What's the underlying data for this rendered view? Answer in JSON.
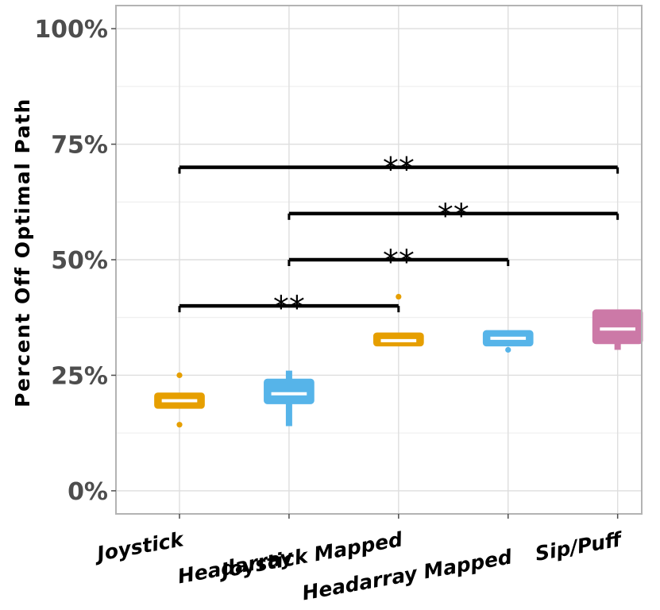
{
  "chart_data": {
    "type": "box",
    "title": "",
    "xlabel": "",
    "ylabel": "Percent Off Optimal Path",
    "ylim": [
      -5,
      105
    ],
    "yticks": [
      0,
      25,
      50,
      75,
      100
    ],
    "ytick_labels": [
      "0%",
      "25%",
      "50%",
      "75%",
      "100%"
    ],
    "grid": true,
    "legend": "none",
    "categories": [
      "Joystick",
      "Headarray",
      "Joystick Mapped",
      "Headarray Mapped",
      "Sip/Puff"
    ],
    "boxes": [
      {
        "category": "Joystick",
        "color": "#E69F00",
        "whisker_low": 18.0,
        "q1": 18.0,
        "median": 19.5,
        "q3": 21.0,
        "whisker_high": 21.0,
        "outliers": [
          25.0,
          14.3
        ]
      },
      {
        "category": "Headarray",
        "color": "#56B4E9",
        "whisker_low": 14.0,
        "q1": 19.0,
        "median": 21.0,
        "q3": 24.0,
        "whisker_high": 26.0,
        "outliers": []
      },
      {
        "category": "Joystick Mapped",
        "color": "#E69F00",
        "whisker_low": 31.5,
        "q1": 31.5,
        "median": 32.5,
        "q3": 34.0,
        "whisker_high": 34.0,
        "outliers": [
          42.0
        ]
      },
      {
        "category": "Headarray Mapped",
        "color": "#56B4E9",
        "whisker_low": 31.5,
        "q1": 31.5,
        "median": 33.0,
        "q3": 34.5,
        "whisker_high": 34.5,
        "outliers": [
          30.5
        ]
      },
      {
        "category": "Sip/Puff",
        "color": "#CC79A7",
        "whisker_low": 30.5,
        "q1": 32.0,
        "median": 35.0,
        "q3": 39.0,
        "whisker_high": 39.0,
        "outliers": []
      }
    ],
    "significance": [
      {
        "from": "Joystick",
        "to": "Sip/Puff",
        "y": 70,
        "label": "**"
      },
      {
        "from": "Headarray",
        "to": "Sip/Puff",
        "y": 60,
        "label": "**"
      },
      {
        "from": "Headarray",
        "to": "Headarray Mapped",
        "y": 50,
        "label": "**"
      },
      {
        "from": "Joystick",
        "to": "Joystick Mapped",
        "y": 40,
        "label": "**"
      }
    ]
  }
}
